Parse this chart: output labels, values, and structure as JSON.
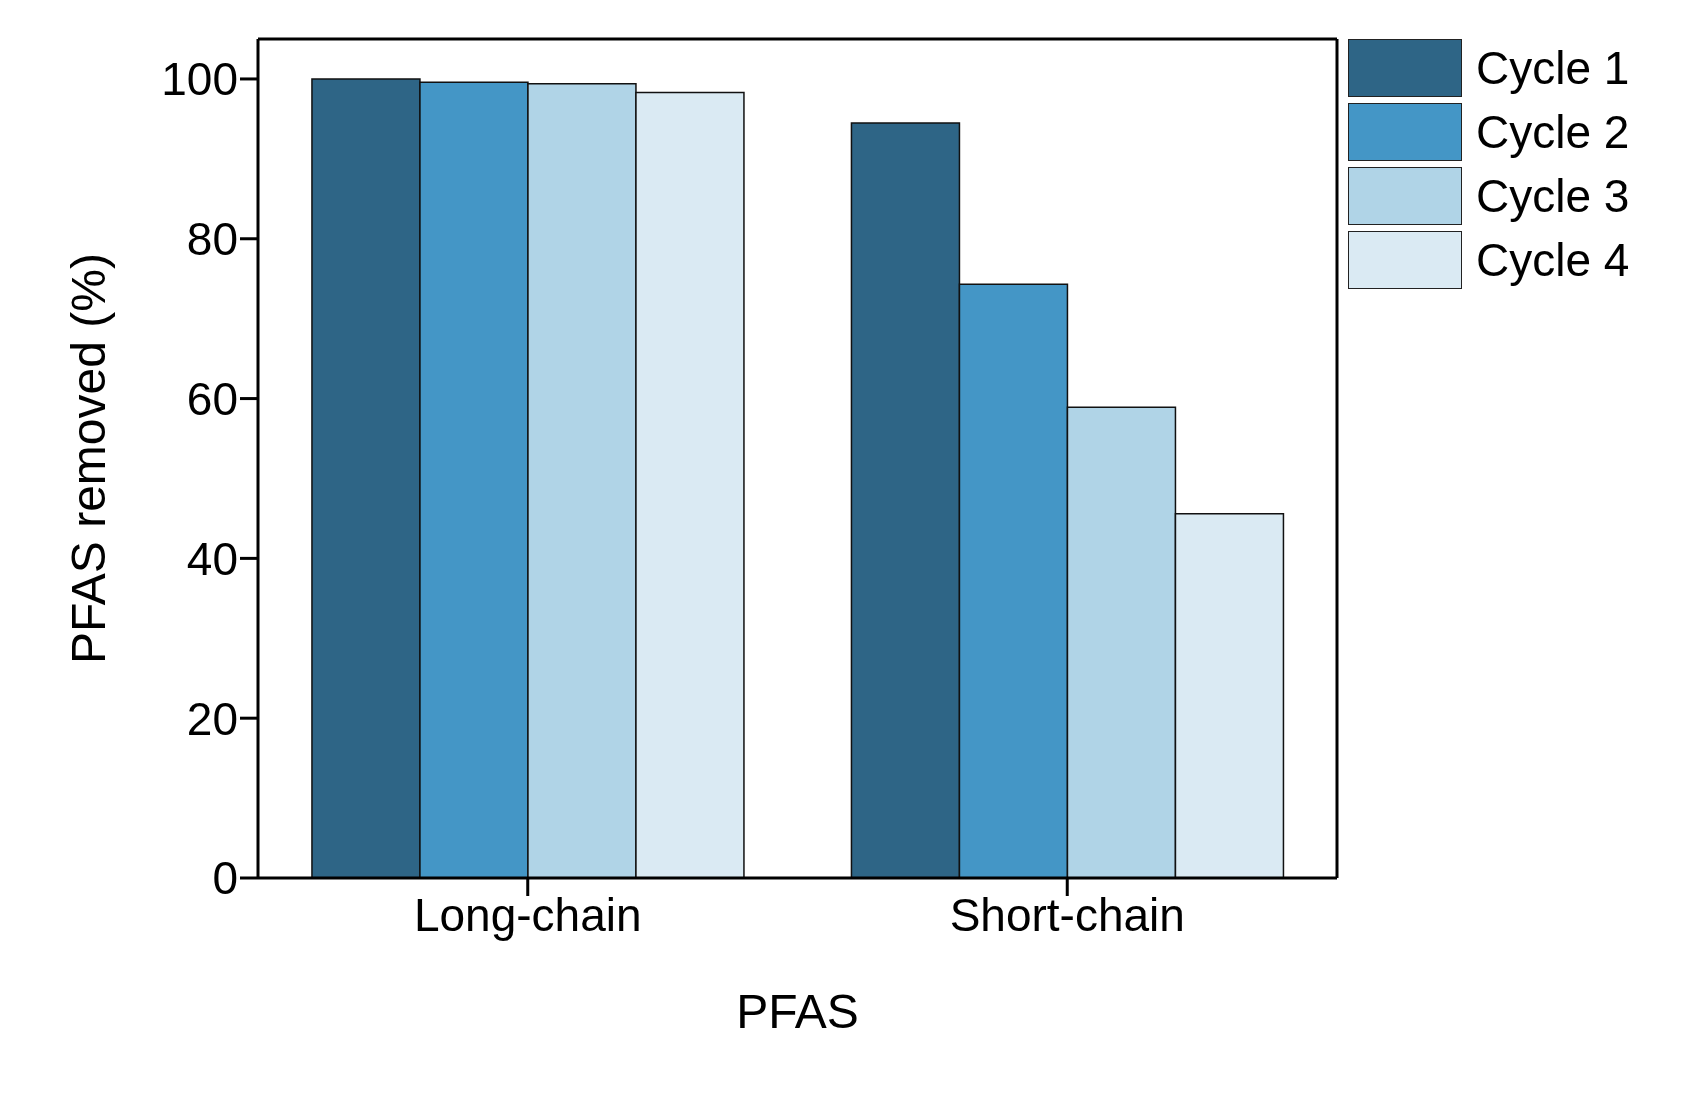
{
  "chart_data": {
    "type": "bar",
    "xlabel": "PFAS",
    "ylabel": "PFAS removed (%)",
    "categories": [
      "Long-chain",
      "Short-chain"
    ],
    "series": [
      {
        "name": "Cycle 1",
        "color": "#2e6586",
        "values": [
          100,
          94.5
        ]
      },
      {
        "name": "Cycle 2",
        "color": "#4496c6",
        "values": [
          99.6,
          74.3
        ]
      },
      {
        "name": "Cycle 3",
        "color": "#b0d4e7",
        "values": [
          99.4,
          58.9
        ]
      },
      {
        "name": "Cycle 4",
        "color": "#daeaf3",
        "values": [
          98.3,
          45.6
        ]
      }
    ],
    "ylim": [
      0,
      105
    ],
    "yticks": [
      0,
      20,
      40,
      60,
      80,
      100
    ],
    "grid": false,
    "legend": "top right"
  }
}
